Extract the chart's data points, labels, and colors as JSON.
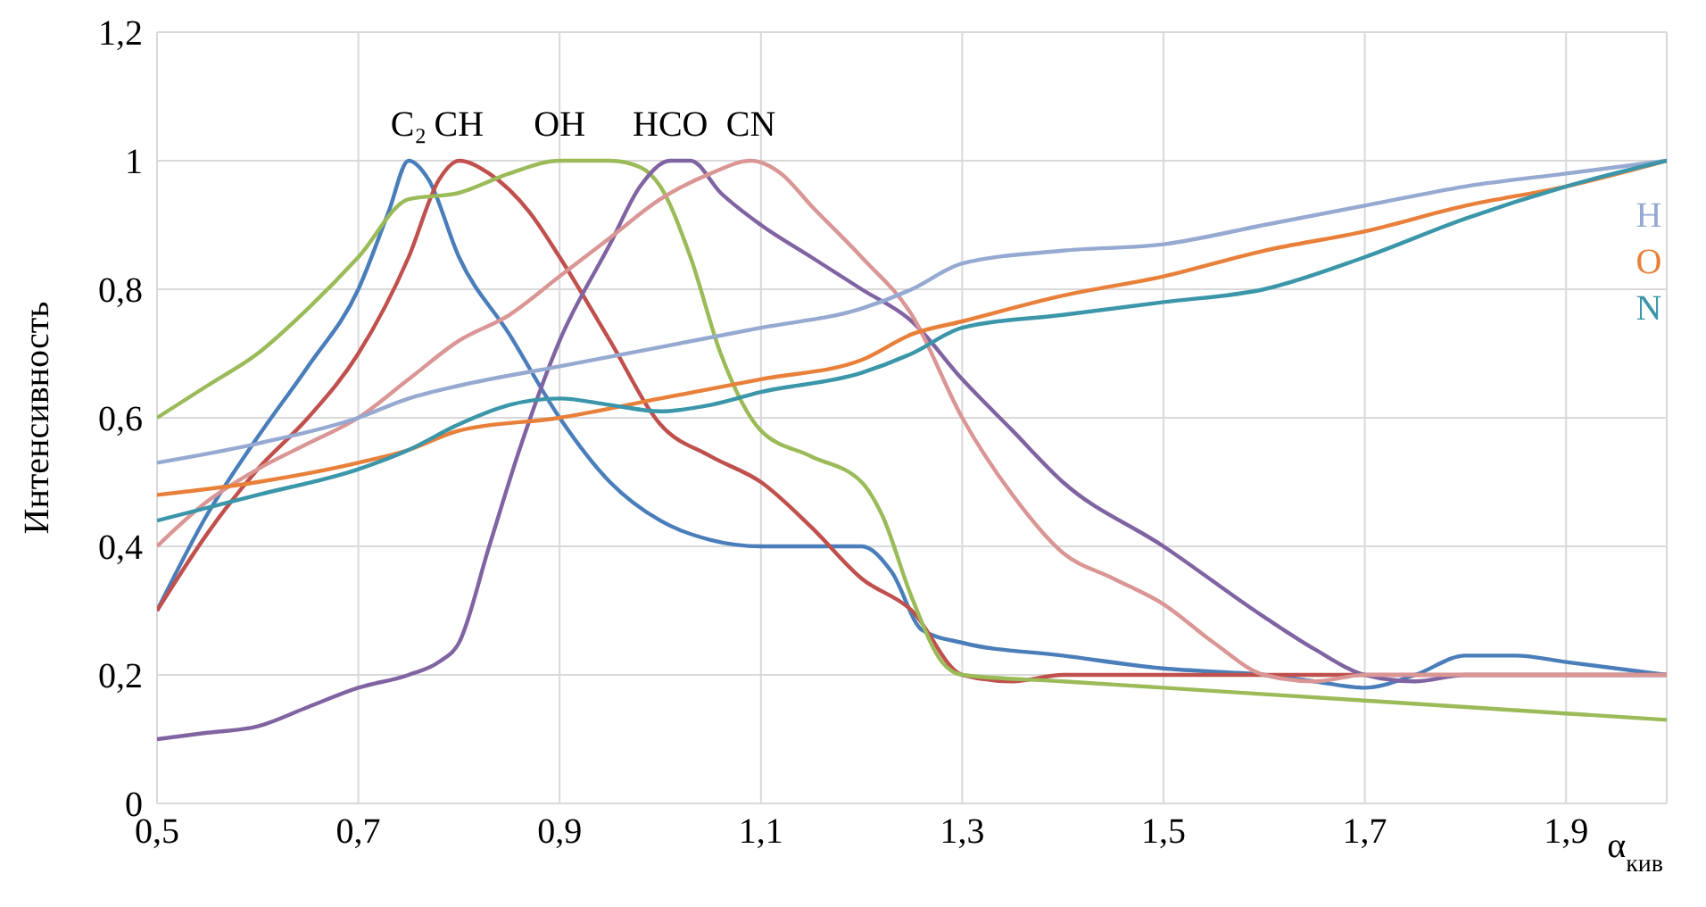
{
  "chart_data": {
    "type": "line",
    "xlabel": "α$_{кив}$",
    "ylabel": "Интенсивность",
    "xlim": [
      0.5,
      2.0
    ],
    "xticks": [
      {
        "value": 0.5,
        "label": "0,5"
      },
      {
        "value": 0.7,
        "label": "0,7"
      },
      {
        "value": 0.9,
        "label": "0,9"
      },
      {
        "value": 1.1,
        "label": "1,1"
      },
      {
        "value": 1.3,
        "label": "1,3"
      },
      {
        "value": 1.5,
        "label": "1,5"
      },
      {
        "value": 1.7,
        "label": "1,7"
      },
      {
        "value": 1.9,
        "label": "1,9"
      },
      {
        "value": 2.0,
        "label": null
      }
    ],
    "ylim": [
      0,
      1.2
    ],
    "yticks": [
      0,
      {
        "value": 0.2,
        "label": "0,2"
      },
      {
        "value": 0.4,
        "label": "0,4"
      },
      {
        "value": 0.6,
        "label": "0,6"
      },
      {
        "value": 0.8,
        "label": "0,8"
      },
      1,
      {
        "value": 1.2,
        "label": "1,2"
      }
    ],
    "grid": true,
    "legend": false,
    "marker": "none",
    "line_style": "solid",
    "series": [
      {
        "name": "C₂",
        "color": "#4a7ebb",
        "x": [
          0.5,
          0.55,
          0.6,
          0.65,
          0.7,
          0.73,
          0.75,
          0.77,
          0.8,
          0.85,
          0.9,
          0.95,
          1.0,
          1.05,
          1.1,
          1.15,
          1.2,
          1.23,
          1.26,
          1.3,
          1.4,
          1.5,
          1.6,
          1.65,
          1.7,
          1.75,
          1.8,
          1.85,
          1.9,
          2.0
        ],
        "values": [
          0.3,
          0.45,
          0.57,
          0.68,
          0.8,
          0.92,
          1.0,
          0.97,
          0.85,
          0.73,
          0.6,
          0.5,
          0.44,
          0.41,
          0.4,
          0.4,
          0.4,
          0.36,
          0.27,
          0.25,
          0.23,
          0.21,
          0.2,
          0.19,
          0.18,
          0.2,
          0.23,
          0.23,
          0.22,
          0.2
        ]
      },
      {
        "name": "CH",
        "color": "#c0504d",
        "x": [
          0.5,
          0.55,
          0.6,
          0.65,
          0.7,
          0.75,
          0.78,
          0.8,
          0.83,
          0.87,
          0.9,
          0.95,
          1.0,
          1.05,
          1.1,
          1.15,
          1.2,
          1.25,
          1.3,
          1.35,
          1.4,
          1.6,
          2.0
        ],
        "values": [
          0.3,
          0.42,
          0.52,
          0.6,
          0.7,
          0.85,
          0.97,
          1.0,
          0.98,
          0.92,
          0.85,
          0.72,
          0.59,
          0.54,
          0.5,
          0.43,
          0.35,
          0.3,
          0.2,
          0.19,
          0.2,
          0.2,
          0.2
        ]
      },
      {
        "name": "OH",
        "color": "#9bbb59",
        "x": [
          0.5,
          0.55,
          0.6,
          0.65,
          0.7,
          0.75,
          0.8,
          0.85,
          0.9,
          0.95,
          0.98,
          1.0,
          1.03,
          1.06,
          1.1,
          1.15,
          1.2,
          1.22,
          1.25,
          1.28,
          1.3,
          1.4,
          1.5,
          1.7,
          1.9,
          2.0
        ],
        "values": [
          0.6,
          0.65,
          0.7,
          0.77,
          0.85,
          0.94,
          0.95,
          0.98,
          1.0,
          1.0,
          0.99,
          0.96,
          0.85,
          0.7,
          0.58,
          0.54,
          0.5,
          0.45,
          0.32,
          0.22,
          0.2,
          0.19,
          0.18,
          0.16,
          0.14,
          0.13
        ]
      },
      {
        "name": "HCO",
        "color": "#8064a2",
        "x": [
          0.5,
          0.55,
          0.6,
          0.65,
          0.7,
          0.75,
          0.78,
          0.8,
          0.83,
          0.86,
          0.9,
          0.95,
          0.98,
          1.01,
          1.03,
          1.06,
          1.1,
          1.15,
          1.2,
          1.25,
          1.3,
          1.35,
          1.4,
          1.5,
          1.6,
          1.65,
          1.7,
          1.75,
          1.8,
          2.0
        ],
        "values": [
          0.1,
          0.11,
          0.12,
          0.15,
          0.18,
          0.2,
          0.22,
          0.25,
          0.4,
          0.55,
          0.72,
          0.87,
          0.96,
          1.0,
          1.0,
          0.95,
          0.9,
          0.85,
          0.8,
          0.75,
          0.66,
          0.58,
          0.5,
          0.4,
          0.29,
          0.24,
          0.2,
          0.19,
          0.2,
          0.2
        ]
      },
      {
        "name": "CN",
        "color": "#d99694",
        "x": [
          0.5,
          0.55,
          0.6,
          0.65,
          0.7,
          0.75,
          0.8,
          0.85,
          0.9,
          0.95,
          1.0,
          1.05,
          1.09,
          1.12,
          1.15,
          1.2,
          1.25,
          1.3,
          1.35,
          1.4,
          1.45,
          1.5,
          1.55,
          1.6,
          1.65,
          1.7,
          2.0
        ],
        "values": [
          0.4,
          0.47,
          0.52,
          0.56,
          0.6,
          0.66,
          0.72,
          0.76,
          0.82,
          0.88,
          0.94,
          0.98,
          1.0,
          0.98,
          0.93,
          0.85,
          0.76,
          0.6,
          0.48,
          0.39,
          0.35,
          0.31,
          0.25,
          0.2,
          0.19,
          0.2,
          0.2
        ]
      },
      {
        "name": "H",
        "color": "#95a9d1",
        "x": [
          0.5,
          0.6,
          0.7,
          0.75,
          0.8,
          0.9,
          1.0,
          1.1,
          1.2,
          1.25,
          1.3,
          1.4,
          1.5,
          1.6,
          1.7,
          1.8,
          1.9,
          2.0
        ],
        "values": [
          0.53,
          0.56,
          0.6,
          0.63,
          0.65,
          0.68,
          0.71,
          0.74,
          0.77,
          0.8,
          0.84,
          0.86,
          0.87,
          0.9,
          0.93,
          0.96,
          0.98,
          1.0
        ]
      },
      {
        "name": "O",
        "color": "#e8803a",
        "x": [
          0.5,
          0.6,
          0.7,
          0.75,
          0.8,
          0.9,
          1.0,
          1.1,
          1.2,
          1.25,
          1.3,
          1.4,
          1.5,
          1.6,
          1.7,
          1.8,
          1.9,
          2.0
        ],
        "values": [
          0.48,
          0.5,
          0.53,
          0.55,
          0.58,
          0.6,
          0.63,
          0.66,
          0.69,
          0.73,
          0.75,
          0.79,
          0.82,
          0.86,
          0.89,
          0.93,
          0.96,
          1.0
        ]
      },
      {
        "name": "N",
        "color": "#3a96a8",
        "x": [
          0.5,
          0.6,
          0.7,
          0.75,
          0.8,
          0.85,
          0.9,
          0.95,
          1.0,
          1.05,
          1.1,
          1.2,
          1.25,
          1.3,
          1.4,
          1.5,
          1.6,
          1.7,
          1.8,
          1.9,
          2.0
        ],
        "values": [
          0.44,
          0.48,
          0.52,
          0.55,
          0.59,
          0.62,
          0.63,
          0.62,
          0.61,
          0.62,
          0.64,
          0.67,
          0.7,
          0.74,
          0.76,
          0.78,
          0.8,
          0.85,
          0.91,
          0.96,
          1.0
        ]
      }
    ]
  }
}
